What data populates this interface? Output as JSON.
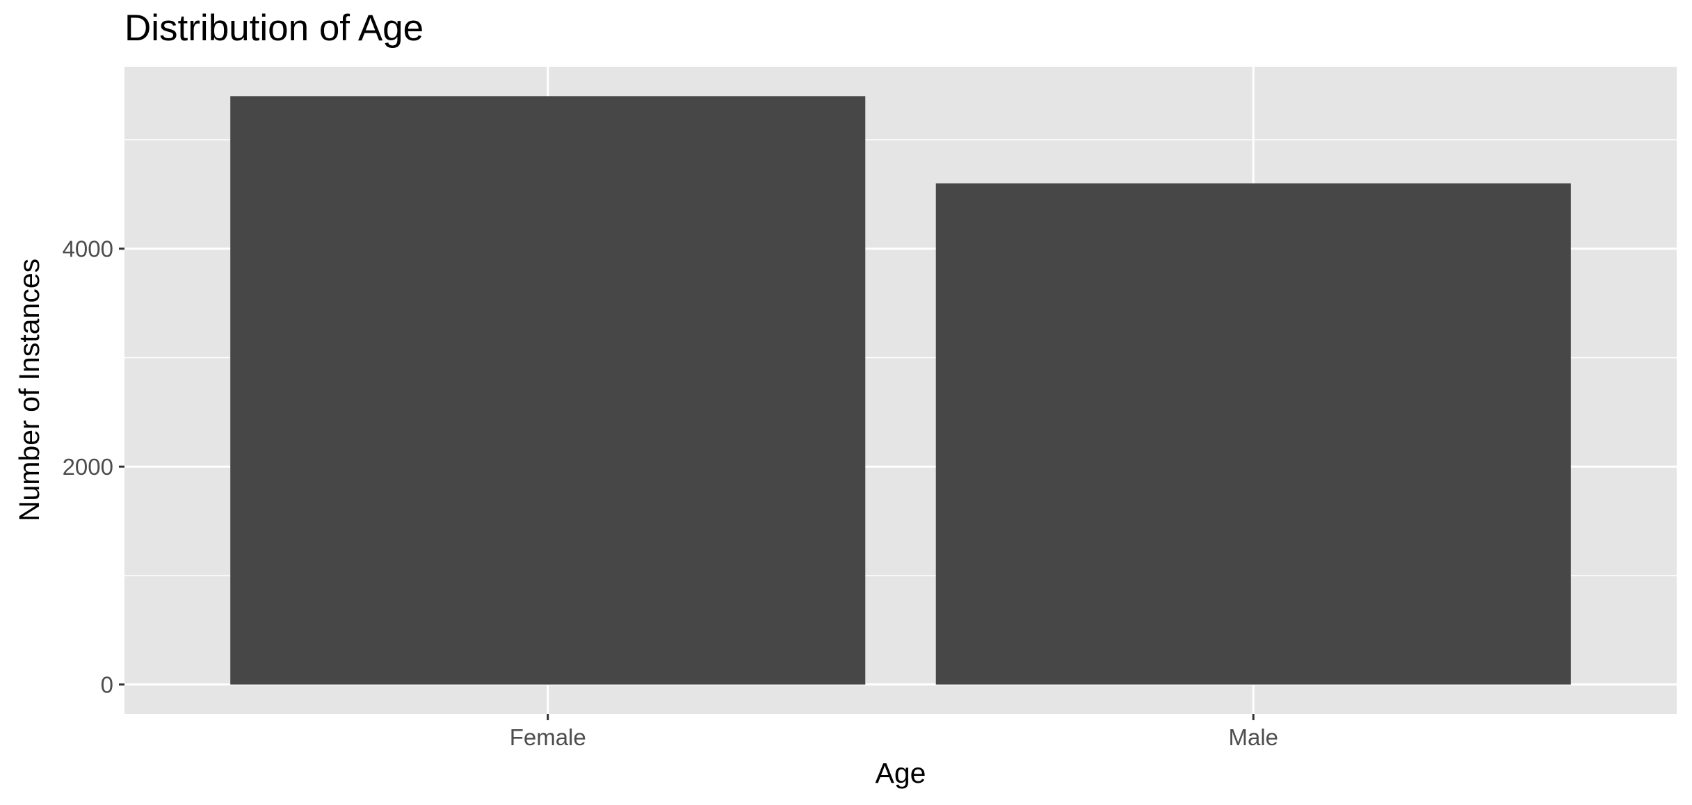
{
  "chart_data": {
    "type": "bar",
    "title": "Distribution of Age",
    "xlabel": "Age",
    "ylabel": "Number of Instances",
    "categories": [
      "Female",
      "Male"
    ],
    "values": [
      5400,
      4600
    ],
    "ylim": [
      -270,
      5670
    ],
    "yticks": [
      0,
      2000,
      4000
    ],
    "ytick_labels": [
      "0",
      "2000",
      "4000"
    ],
    "grid": true,
    "legend": "none",
    "colors": {
      "bar": "#474747",
      "panel": "#e5e5e5",
      "grid": "#ffffff",
      "tick_text": "#4d4d4d"
    }
  }
}
